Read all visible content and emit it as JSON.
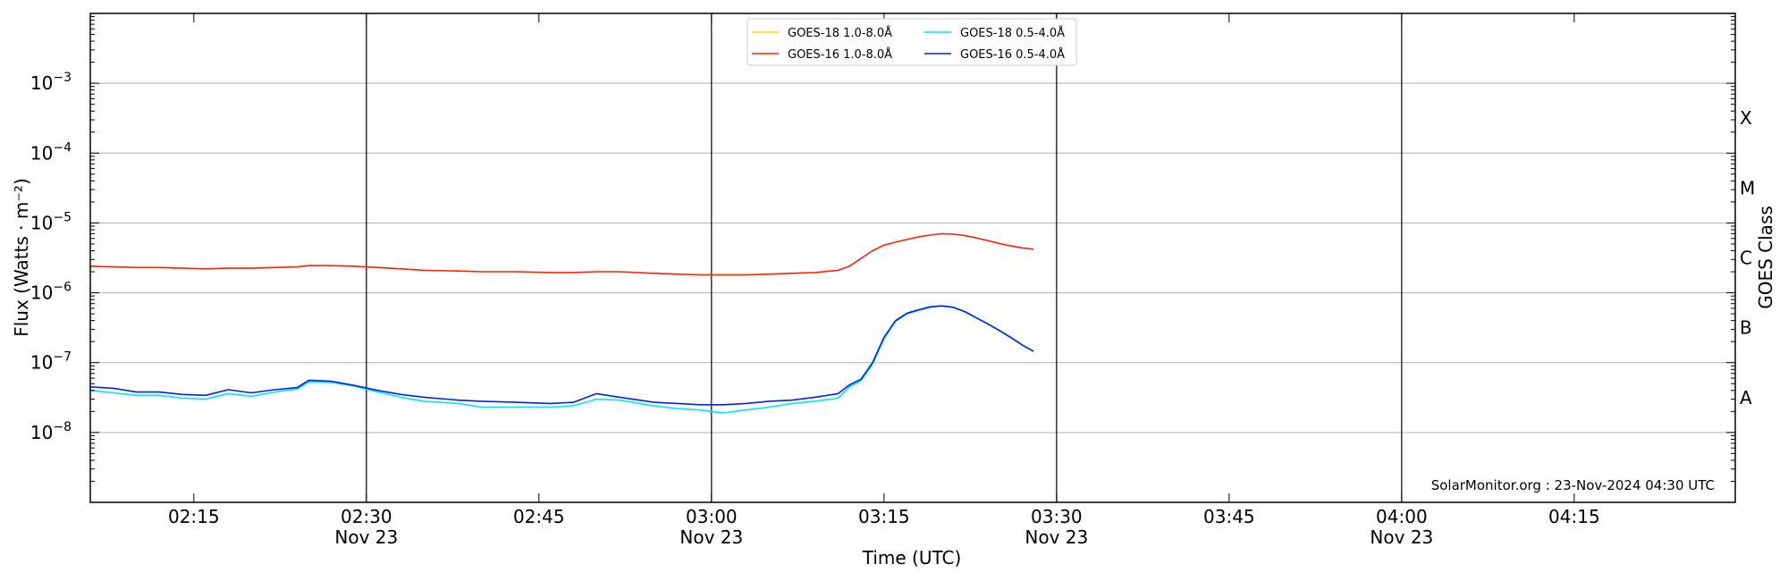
{
  "chart_data": {
    "type": "line",
    "xlabel": "Time (UTC)",
    "ylabel": "Flux (Watts · m⁻²)",
    "right_axis_label": "GOES Class",
    "y_scale": "log",
    "ylim": [
      1e-09,
      0.01
    ],
    "xlim": [
      "02:06",
      "04:29"
    ],
    "y_ticks": [
      {
        "value": 1e-08,
        "base": "10",
        "exp": "−8"
      },
      {
        "value": 1e-07,
        "base": "10",
        "exp": "−7"
      },
      {
        "value": 1e-06,
        "base": "10",
        "exp": "−6"
      },
      {
        "value": 1e-05,
        "base": "10",
        "exp": "−5"
      },
      {
        "value": 0.0001,
        "base": "10",
        "exp": "−4"
      },
      {
        "value": 0.001,
        "base": "10",
        "exp": "−3"
      }
    ],
    "x_ticks": [
      {
        "time": "02:15",
        "label": "02:15",
        "date": ""
      },
      {
        "time": "02:30",
        "label": "02:30",
        "date": "Nov 23"
      },
      {
        "time": "02:45",
        "label": "02:45",
        "date": ""
      },
      {
        "time": "03:00",
        "label": "03:00",
        "date": "Nov 23"
      },
      {
        "time": "03:15",
        "label": "03:15",
        "date": ""
      },
      {
        "time": "03:30",
        "label": "03:30",
        "date": "Nov 23"
      },
      {
        "time": "03:45",
        "label": "03:45",
        "date": ""
      },
      {
        "time": "04:00",
        "label": "04:00",
        "date": "Nov 23"
      },
      {
        "time": "04:15",
        "label": "04:15",
        "date": ""
      }
    ],
    "vertical_lines": [
      "02:30",
      "03:00",
      "03:30",
      "04:00"
    ],
    "goes_classes": [
      {
        "label": "A",
        "value": 3.16e-08
      },
      {
        "label": "B",
        "value": 3.16e-07
      },
      {
        "label": "C",
        "value": 3.16e-06
      },
      {
        "label": "M",
        "value": 3.16e-05
      },
      {
        "label": "X",
        "value": 0.000316
      }
    ],
    "grid": true,
    "legend_position": "top-center",
    "annotation": "SolarMonitor.org : 23-Nov-2024 04:30 UTC",
    "series": [
      {
        "name": "GOES-18 1.0-8.0Å",
        "color": "#ffd700",
        "x": [],
        "y": []
      },
      {
        "name": "GOES-16 1.0-8.0Å",
        "color": "#ff2200",
        "x": [
          "02:06",
          "02:08",
          "02:10",
          "02:12",
          "02:14",
          "02:16",
          "02:18",
          "02:20",
          "02:22",
          "02:24",
          "02:25",
          "02:27",
          "02:29",
          "02:31",
          "02:33",
          "02:35",
          "02:38",
          "02:40",
          "02:43",
          "02:46",
          "02:48",
          "02:50",
          "02:52",
          "02:55",
          "02:57",
          "02:59",
          "03:01",
          "03:03",
          "03:05",
          "03:07",
          "03:09",
          "03:11",
          "03:12",
          "03:13",
          "03:14",
          "03:15",
          "03:16",
          "03:17",
          "03:18",
          "03:19",
          "03:20",
          "03:21",
          "03:22",
          "03:23",
          "03:24",
          "03:25",
          "03:26",
          "03:27",
          "03:28"
        ],
        "y": [
          2.4e-06,
          2.35e-06,
          2.3e-06,
          2.3e-06,
          2.25e-06,
          2.2e-06,
          2.25e-06,
          2.25e-06,
          2.3e-06,
          2.35e-06,
          2.45e-06,
          2.45e-06,
          2.4e-06,
          2.3e-06,
          2.2e-06,
          2.1e-06,
          2.05e-06,
          2e-06,
          2e-06,
          1.95e-06,
          1.95e-06,
          2e-06,
          2e-06,
          1.9e-06,
          1.85e-06,
          1.8e-06,
          1.8e-06,
          1.8e-06,
          1.85e-06,
          1.9e-06,
          1.95e-06,
          2.1e-06,
          2.4e-06,
          3.1e-06,
          4e-06,
          4.8e-06,
          5.3e-06,
          5.8e-06,
          6.3e-06,
          6.7e-06,
          7e-06,
          6.9e-06,
          6.6e-06,
          6.1e-06,
          5.6e-06,
          5.1e-06,
          4.7e-06,
          4.4e-06,
          4.2e-06
        ]
      },
      {
        "name": "GOES-18 0.5-4.0Å",
        "color": "#00e5ff",
        "x": [
          "02:06",
          "02:08",
          "02:10",
          "02:12",
          "02:14",
          "02:16",
          "02:18",
          "02:20",
          "02:22",
          "02:24",
          "02:25",
          "02:27",
          "02:29",
          "02:31",
          "02:33",
          "02:35",
          "02:38",
          "02:40",
          "02:43",
          "02:46",
          "02:48",
          "02:50",
          "02:52",
          "02:55",
          "02:57",
          "02:59",
          "03:01",
          "03:03",
          "03:05",
          "03:07",
          "03:09",
          "03:11",
          "03:12",
          "03:13",
          "03:14",
          "03:15",
          "03:16",
          "03:17",
          "03:18",
          "03:19",
          "03:20",
          "03:21",
          "03:22",
          "03:23",
          "03:24",
          "03:25",
          "03:26",
          "03:27",
          "03:28"
        ],
        "y": [
          4e-08,
          3.7e-08,
          3.4e-08,
          3.4e-08,
          3.1e-08,
          3e-08,
          3.6e-08,
          3.3e-08,
          3.8e-08,
          4.2e-08,
          5.3e-08,
          5.2e-08,
          4.6e-08,
          3.8e-08,
          3.2e-08,
          2.8e-08,
          2.6e-08,
          2.3e-08,
          2.3e-08,
          2.3e-08,
          2.4e-08,
          3e-08,
          2.9e-08,
          2.4e-08,
          2.2e-08,
          2.1e-08,
          1.9e-08,
          2.1e-08,
          2.3e-08,
          2.6e-08,
          2.8e-08,
          3.1e-08,
          4.5e-08,
          5.5e-08,
          9.5e-08,
          2.2e-07,
          3.9e-07,
          5e-07,
          5.6e-07,
          6.2e-07,
          6.5e-07,
          6.2e-07,
          5.4e-07,
          4.4e-07,
          3.6e-07,
          2.9e-07,
          2.3e-07,
          1.8e-07,
          1.45e-07
        ]
      },
      {
        "name": "GOES-16 0.5-4.0Å",
        "color": "#0022ee",
        "x": [
          "02:06",
          "02:08",
          "02:10",
          "02:12",
          "02:14",
          "02:16",
          "02:18",
          "02:20",
          "02:22",
          "02:24",
          "02:25",
          "02:27",
          "02:29",
          "02:31",
          "02:33",
          "02:35",
          "02:38",
          "02:40",
          "02:43",
          "02:46",
          "02:48",
          "02:50",
          "02:52",
          "02:55",
          "02:57",
          "02:59",
          "03:01",
          "03:03",
          "03:05",
          "03:07",
          "03:09",
          "03:11",
          "03:12",
          "03:13",
          "03:14",
          "03:15",
          "03:16",
          "03:17",
          "03:18",
          "03:19",
          "03:20",
          "03:21",
          "03:22",
          "03:23",
          "03:24",
          "03:25",
          "03:26",
          "03:27",
          "03:28"
        ],
        "y": [
          4.5e-08,
          4.3e-08,
          3.8e-08,
          3.8e-08,
          3.5e-08,
          3.4e-08,
          4.1e-08,
          3.7e-08,
          4.1e-08,
          4.4e-08,
          5.6e-08,
          5.4e-08,
          4.7e-08,
          4e-08,
          3.5e-08,
          3.2e-08,
          2.9e-08,
          2.8e-08,
          2.7e-08,
          2.6e-08,
          2.7e-08,
          3.6e-08,
          3.2e-08,
          2.7e-08,
          2.6e-08,
          2.5e-08,
          2.5e-08,
          2.6e-08,
          2.8e-08,
          2.9e-08,
          3.2e-08,
          3.6e-08,
          4.8e-08,
          5.8e-08,
          1e-07,
          2.3e-07,
          4e-07,
          5.1e-07,
          5.7e-07,
          6.3e-07,
          6.5e-07,
          6.2e-07,
          5.4e-07,
          4.4e-07,
          3.6e-07,
          2.9e-07,
          2.3e-07,
          1.8e-07,
          1.45e-07
        ]
      }
    ]
  }
}
